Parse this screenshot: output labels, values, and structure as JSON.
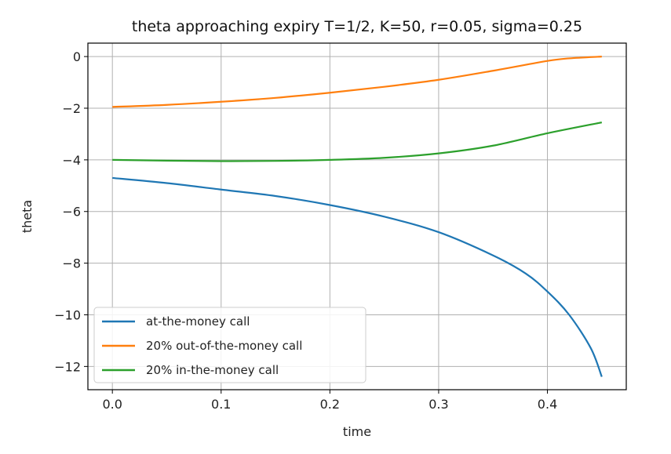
{
  "chart_data": {
    "type": "line",
    "title": "theta approaching expiry T=1/2, K=50, r=0.05, sigma=0.25",
    "xlabel": "time",
    "ylabel": "theta",
    "xlim": [
      -0.0225,
      0.4725
    ],
    "ylim": [
      -12.9,
      0.52
    ],
    "xticks": [
      0.0,
      0.1,
      0.2,
      0.3,
      0.4
    ],
    "xtick_labels": [
      "0.0",
      "0.1",
      "0.2",
      "0.3",
      "0.4"
    ],
    "yticks": [
      0,
      -2,
      -4,
      -6,
      -8,
      -10,
      -12
    ],
    "ytick_labels": [
      "0",
      "−2",
      "−4",
      "−6",
      "−8",
      "−10",
      "−12"
    ],
    "grid": true,
    "legend_position": "lower-left",
    "series": [
      {
        "name": "at-the-money call",
        "color": "#1f77b4",
        "x": [
          0,
          0.05,
          0.1,
          0.15,
          0.2,
          0.25,
          0.3,
          0.35,
          0.38,
          0.4,
          0.42,
          0.44,
          0.45
        ],
        "y": [
          -4.7,
          -4.9,
          -5.15,
          -5.4,
          -5.75,
          -6.2,
          -6.8,
          -7.7,
          -8.4,
          -9.1,
          -10.0,
          -11.3,
          -12.4
        ]
      },
      {
        "name": "20% out-of-the-money call",
        "color": "#ff7f0e",
        "x": [
          0,
          0.05,
          0.1,
          0.15,
          0.2,
          0.25,
          0.3,
          0.35,
          0.4,
          0.42,
          0.45
        ],
        "y": [
          -1.95,
          -1.87,
          -1.75,
          -1.6,
          -1.4,
          -1.17,
          -0.9,
          -0.55,
          -0.17,
          -0.07,
          0.0
        ]
      },
      {
        "name": "20% in-the-money call",
        "color": "#2ca02c",
        "x": [
          0,
          0.05,
          0.1,
          0.15,
          0.2,
          0.25,
          0.3,
          0.35,
          0.4,
          0.45
        ],
        "y": [
          -4.0,
          -4.03,
          -4.05,
          -4.04,
          -4.0,
          -3.92,
          -3.75,
          -3.45,
          -2.97,
          -2.55
        ]
      }
    ]
  }
}
